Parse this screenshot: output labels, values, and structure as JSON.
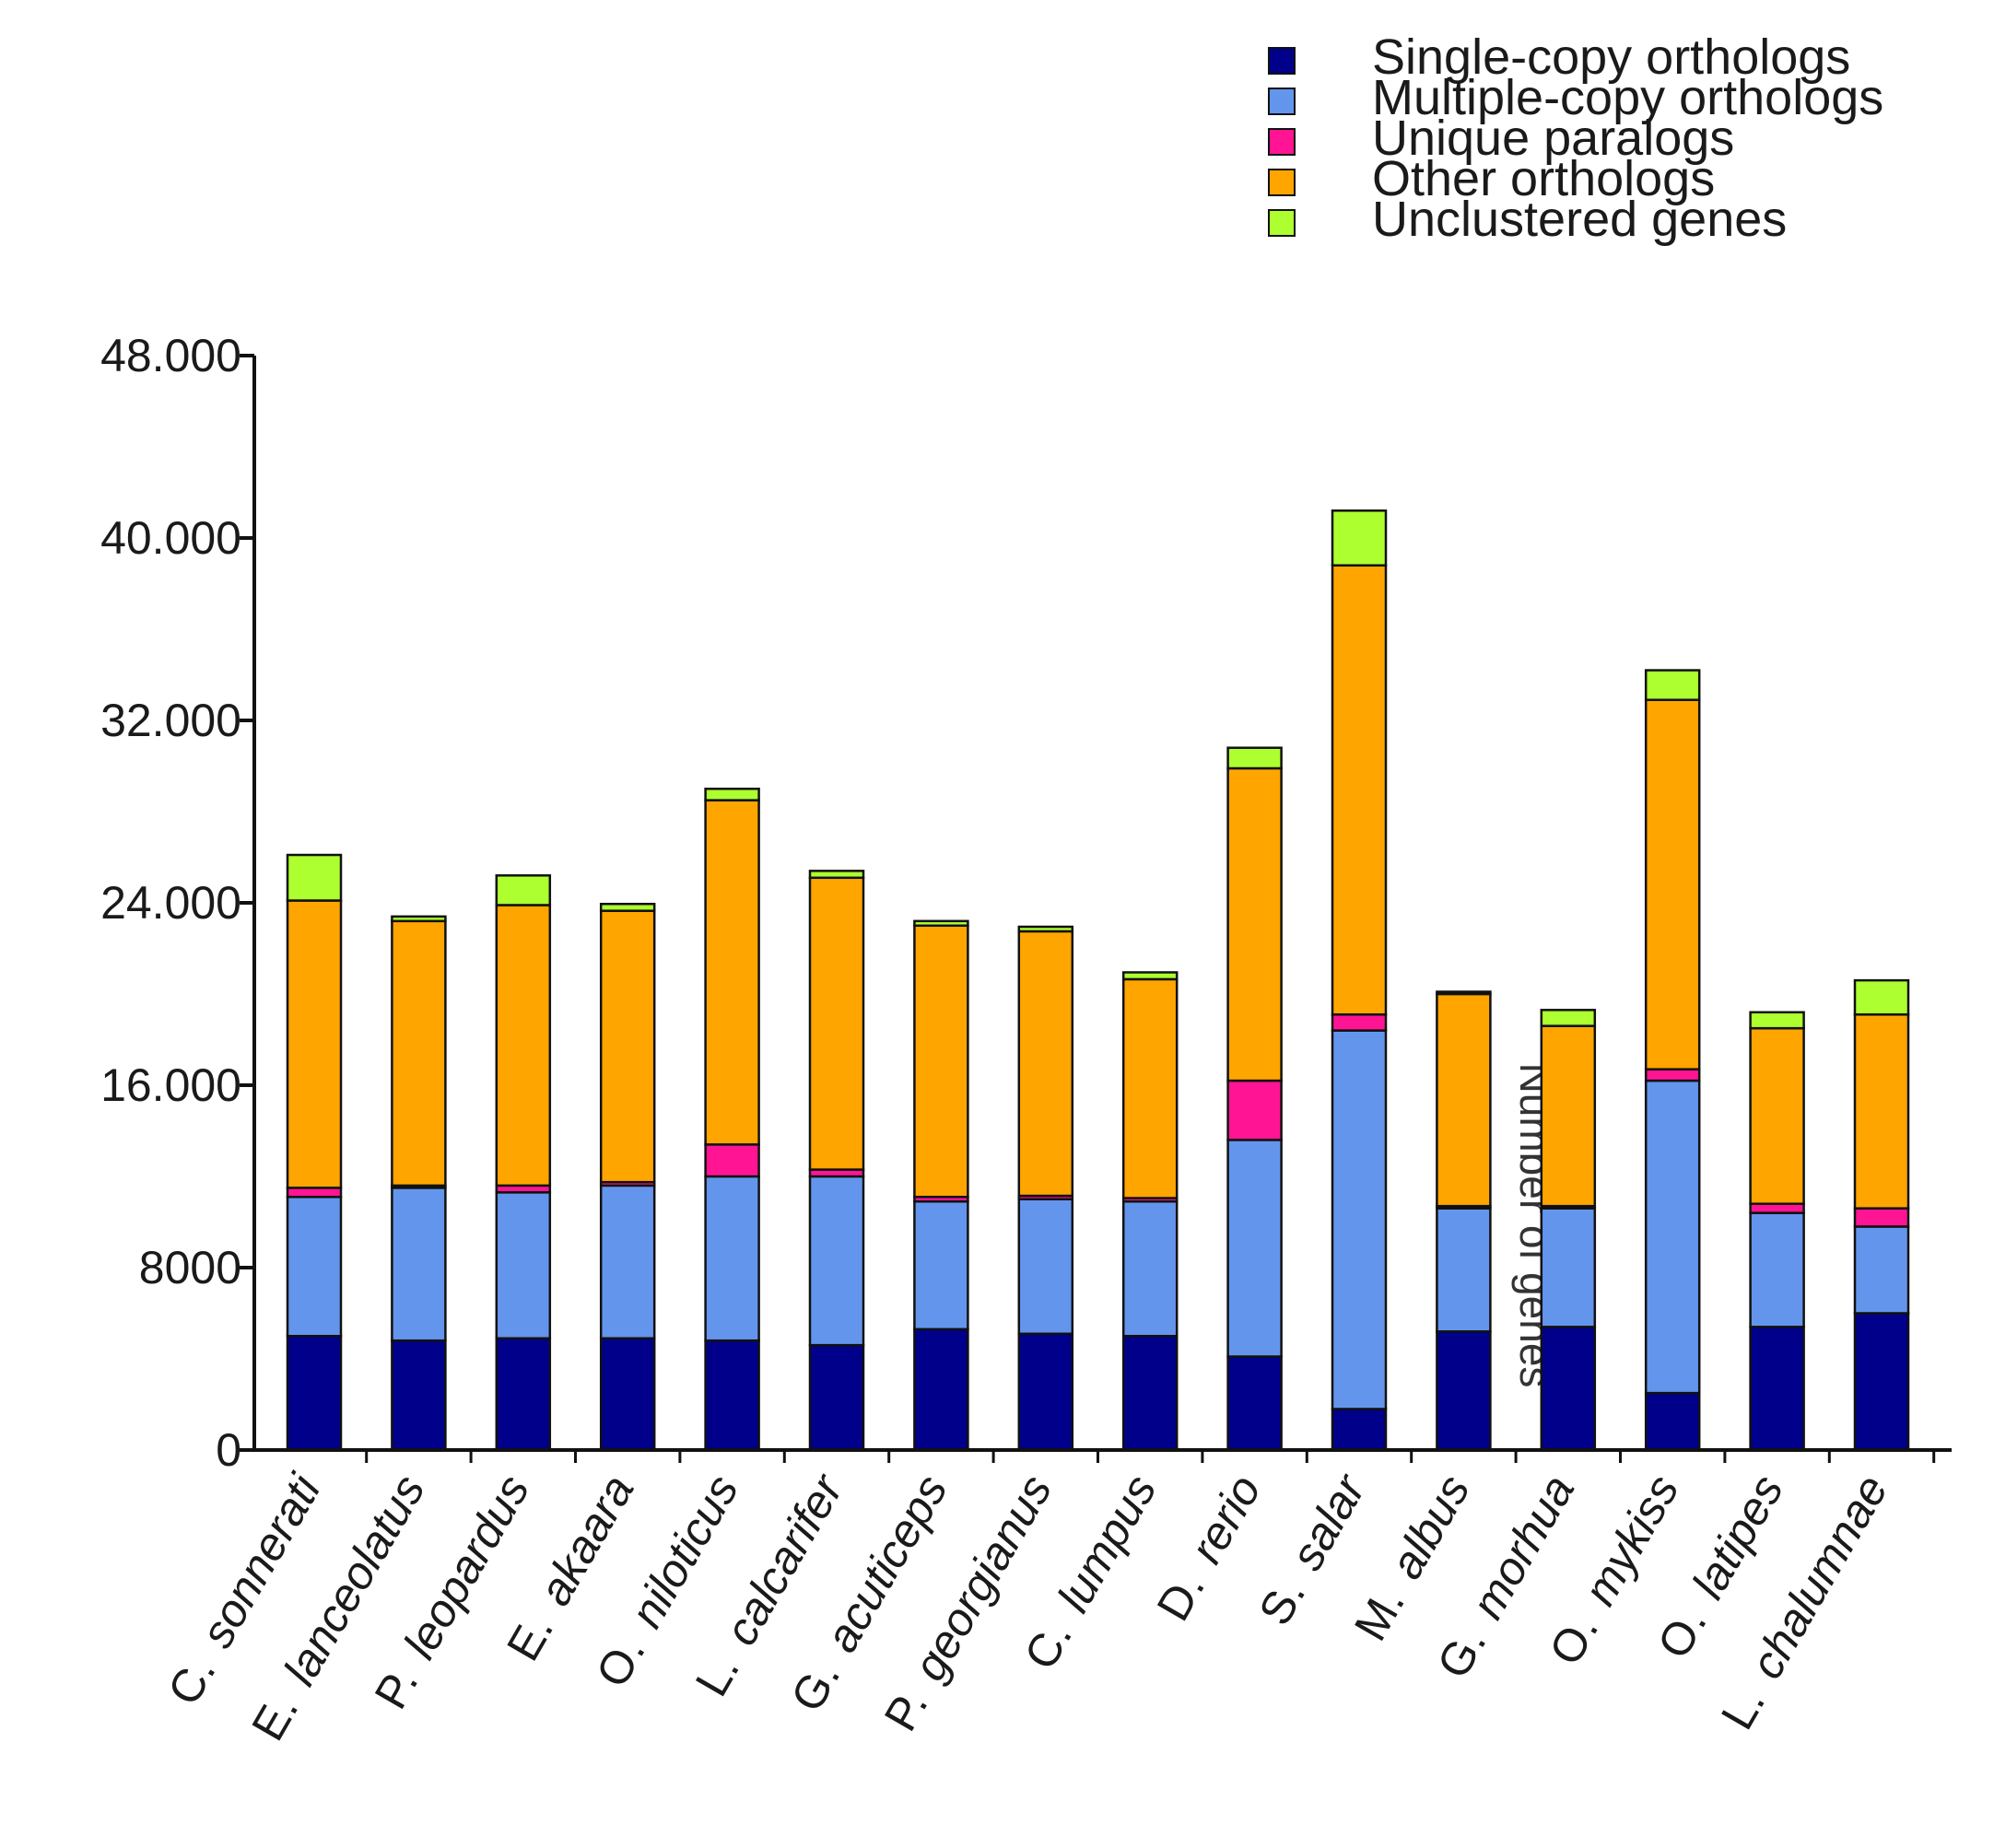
{
  "chart_data": {
    "type": "bar",
    "stacked": true,
    "title": "",
    "xlabel": "",
    "ylabel": "Number of genes",
    "ylim": [
      0,
      48000
    ],
    "yticks": [
      0,
      8000,
      16000,
      24000,
      32000,
      40000,
      48000
    ],
    "ytick_labels": [
      "0",
      "8000",
      "16.000",
      "24.000",
      "32.000",
      "40.000",
      "48.000"
    ],
    "legend_position": "top-right",
    "categories": [
      {
        "genus": "C.",
        "species": "sonnerati"
      },
      {
        "genus": "E.",
        "species": "lanceolatus"
      },
      {
        "genus": "P.",
        "species": "leopardus"
      },
      {
        "genus": "E.",
        "species": "akaara"
      },
      {
        "genus": "O.",
        "species": "niloticus"
      },
      {
        "genus": "L.",
        "species": "calcarifer"
      },
      {
        "genus": "G.",
        "species": "acuticeps"
      },
      {
        "genus": "P.",
        "species": "georgianus"
      },
      {
        "genus": "C.",
        "species": "lumpus"
      },
      {
        "genus": "D.",
        "species": "rerio"
      },
      {
        "genus": "S.",
        "species": "salar"
      },
      {
        "genus": "M.",
        "species": "albus"
      },
      {
        "genus": "G.",
        "species": "morhua"
      },
      {
        "genus": "O.",
        "species": "mykiss"
      },
      {
        "genus": "O.",
        "species": "latipes"
      },
      {
        "genus": "L.",
        "species": "chalumnae"
      }
    ],
    "series": [
      {
        "name": "Single-copy orthologs",
        "color": "#00008b",
        "values": [
          5000,
          4800,
          4900,
          4900,
          4800,
          4600,
          5300,
          5100,
          5000,
          4100,
          1800,
          5200,
          5400,
          2500,
          5400,
          6000
        ]
      },
      {
        "name": "Multiple-copy orthologs",
        "color": "#6495ed",
        "values": [
          6100,
          6700,
          6400,
          6700,
          7200,
          7400,
          5600,
          5900,
          5900,
          9500,
          16600,
          5400,
          5200,
          13700,
          5000,
          3800
        ]
      },
      {
        "name": "Unique paralogs",
        "color": "#ff1493",
        "values": [
          400,
          100,
          300,
          150,
          1400,
          300,
          200,
          150,
          150,
          2600,
          700,
          100,
          100,
          500,
          400,
          800
        ]
      },
      {
        "name": "Other orthologs",
        "color": "#ffa500",
        "values": [
          12600,
          11600,
          12300,
          11900,
          15100,
          12800,
          11900,
          11600,
          9600,
          13700,
          19700,
          9300,
          7900,
          16200,
          7700,
          8500
        ]
      },
      {
        "name": "Unclustered genes",
        "color": "#adff2f",
        "values": [
          2000,
          200,
          1300,
          300,
          500,
          300,
          200,
          200,
          300,
          900,
          2400,
          100,
          700,
          1300,
          700,
          1500
        ]
      }
    ]
  }
}
